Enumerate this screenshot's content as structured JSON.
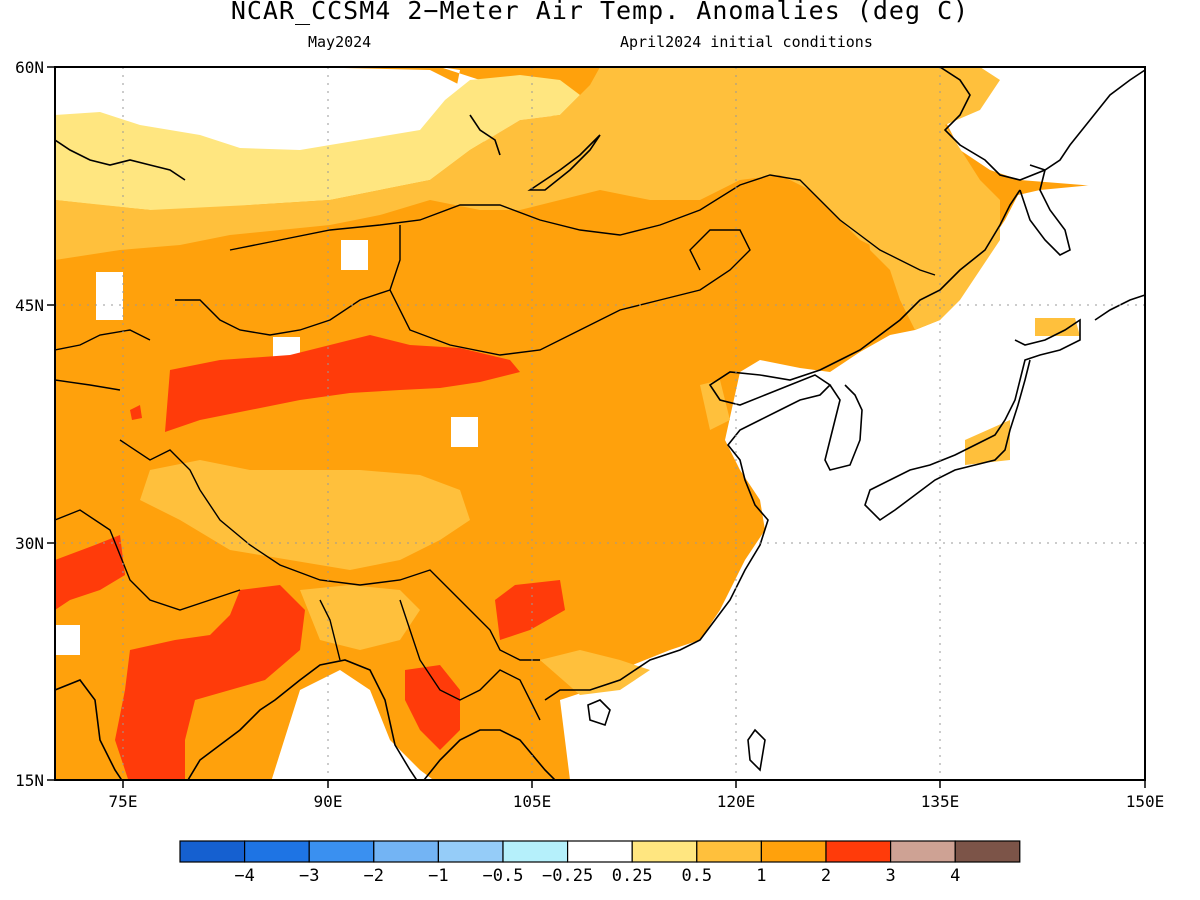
{
  "header": {
    "title": "NCAR_CCSM4 2−Meter Air Temp. Anomalies (deg C)",
    "subtitle_left": "May2024",
    "subtitle_right": "April2024 initial conditions"
  },
  "map": {
    "projection": "lat-lon",
    "lon_range": [
      70,
      150
    ],
    "lat_range": [
      15,
      60
    ],
    "lat_labels": [
      "60N",
      "45N",
      "30N",
      "15N"
    ],
    "lon_labels": [
      "75E",
      "90E",
      "105E",
      "120E",
      "135E",
      "150E"
    ],
    "anomaly_regions": [
      {
        "category": "0.25 to 0.5",
        "color": "#ffe680",
        "areas": [
          "northern Kazakhstan / West Siberia",
          "central Tibetan Plateau"
        ]
      },
      {
        "category": "0.5 to 1",
        "color": "#ffc03c",
        "areas": [
          "southern Siberia",
          "Tibetan Plateau rim",
          "Sea of Japan coast"
        ]
      },
      {
        "category": "1 to 2",
        "color": "#ffa10c",
        "areas": [
          "Mongolia",
          "eastern China",
          "northeast China",
          "India",
          "Indochina"
        ]
      },
      {
        "category": "2 to 3",
        "color": "#ff3b0a",
        "areas": [
          "Tarim Basin / Kunlun",
          "Pakistan",
          "central India",
          "Yunnan / Guizhou",
          "Myanmar"
        ]
      }
    ]
  },
  "colorbar": {
    "colors": [
      "#1560d0",
      "#1e74e4",
      "#3a90f0",
      "#73b4f4",
      "#95ccf8",
      "#b5f0fb",
      "#ffffff",
      "#ffe680",
      "#ffc03c",
      "#ffa10c",
      "#ff3b0a",
      "#cea294",
      "#7c5448"
    ],
    "labels": [
      "−4",
      "−3",
      "−2",
      "−1",
      "−0.5",
      "−0.25",
      "0.25",
      "0.5",
      "1",
      "2",
      "3",
      "4"
    ]
  }
}
